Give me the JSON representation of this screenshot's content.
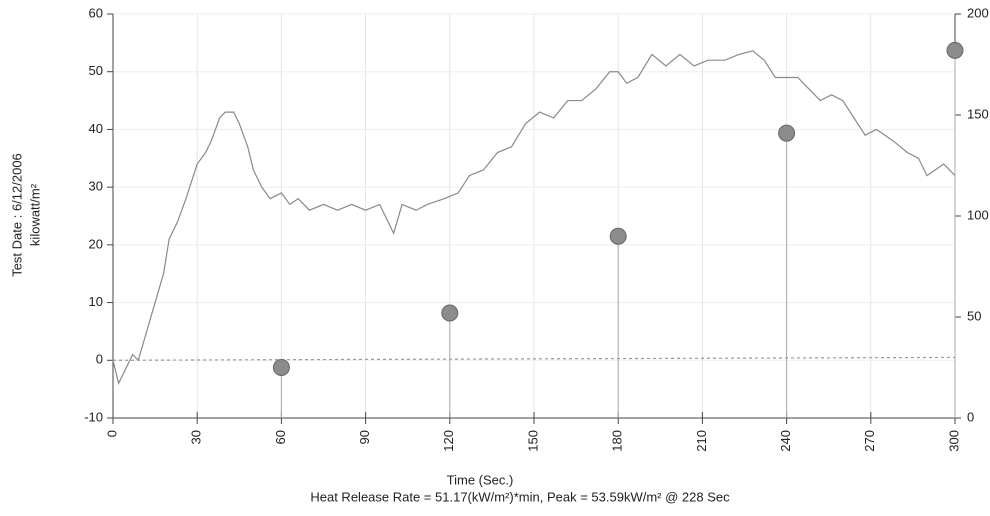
{
  "chart_data": {
    "type": "line",
    "y_label": [
      "Test Date : 6/12/2006",
      "kilowatt/m²"
    ],
    "x_label": "Time (Sec.)",
    "subtitle": "Heat Release Rate = 51.17(kW/m²)*min, Peak = 53.59kW/m² @ 228 Sec",
    "xlim": [
      0,
      300
    ],
    "xticks": [
      0,
      30,
      60,
      90,
      120,
      150,
      180,
      210,
      240,
      270,
      300
    ],
    "ylim": [
      -10,
      60
    ],
    "yticks": [
      -10,
      0,
      10,
      20,
      30,
      40,
      50,
      60
    ],
    "y2lim": [
      0,
      200
    ],
    "y2ticks": [
      0,
      50,
      100,
      150,
      200
    ],
    "grid": true,
    "series": [
      {
        "color": "#8a8a8a",
        "style": "solid",
        "x": [
          0,
          2,
          5,
          7,
          9,
          12,
          15,
          18,
          20,
          23,
          26,
          28,
          30,
          33,
          35,
          38,
          40,
          43,
          45,
          48,
          50,
          53,
          56,
          60,
          63,
          66,
          70,
          75,
          80,
          85,
          90,
          95,
          100,
          103,
          108,
          112,
          118,
          123,
          127,
          132,
          137,
          142,
          147,
          152,
          157,
          162,
          167,
          172,
          177,
          180,
          183,
          187,
          192,
          197,
          202,
          207,
          212,
          218,
          223,
          228,
          232,
          236,
          240,
          244,
          248,
          252,
          256,
          260,
          264,
          268,
          272,
          278,
          283,
          287,
          290,
          293,
          296,
          300
        ],
        "values": [
          0,
          -4,
          -1,
          1,
          0,
          5,
          10,
          15,
          21,
          24,
          28,
          31,
          34,
          36,
          38,
          42,
          43,
          43,
          41,
          37,
          33,
          30,
          28,
          29,
          27,
          28,
          26,
          27,
          26,
          27,
          26,
          27,
          22,
          27,
          26,
          27,
          28,
          29,
          32,
          33,
          36,
          37,
          41,
          43,
          42,
          45,
          45,
          47,
          50,
          50,
          48,
          49,
          53,
          51,
          53,
          51,
          52,
          52,
          53,
          53.6,
          52,
          49,
          49,
          49,
          47,
          45,
          46,
          45,
          42,
          39,
          40,
          38,
          36,
          35,
          32,
          33,
          34,
          32
        ]
      },
      {
        "color": "#999999",
        "style": "dashed",
        "x": [
          0,
          300
        ],
        "values": [
          0,
          0.5
        ]
      },
      {
        "color": "#8c8c8c",
        "style": "stem",
        "axis": "y2",
        "x": [
          60,
          120,
          180,
          240,
          300
        ],
        "values": [
          25,
          52,
          90,
          141,
          182
        ]
      }
    ]
  }
}
